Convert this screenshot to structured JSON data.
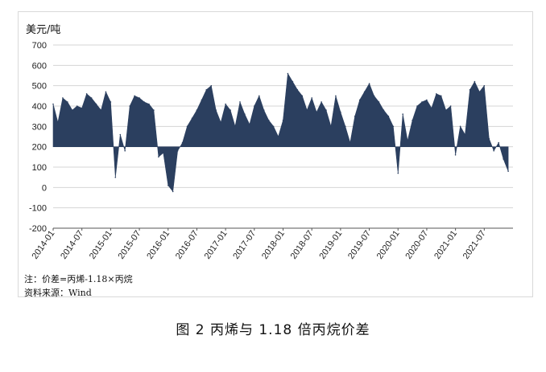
{
  "figure": {
    "unit_label": "美元/吨",
    "note": "注：价差=丙烯-1.18×丙烷",
    "source": "资料来源：Wind",
    "caption": "图 2  丙烯与 1.18 倍丙烷价差"
  },
  "colors": {
    "area": "#2b3f5f",
    "grid": "#d4d4d4",
    "axis": "#555555"
  },
  "chart_data": {
    "type": "area",
    "title": "",
    "xlabel": "",
    "ylabel": "美元/吨",
    "ylim": [
      -200,
      700
    ],
    "yticks": [
      -200,
      -100,
      0,
      100,
      200,
      300,
      400,
      500,
      600,
      700
    ],
    "baseline": 200,
    "grid": true,
    "legend": "none",
    "xticks": [
      "2014-01",
      "2014-07",
      "2015-01",
      "2015-07",
      "2016-01",
      "2016-07",
      "2017-01",
      "2017-07",
      "2018-01",
      "2018-07",
      "2019-01",
      "2019-07",
      "2020-01",
      "2020-07",
      "2021-01",
      "2021-07"
    ],
    "x": [
      "2014-01",
      "2014-02",
      "2014-03",
      "2014-04",
      "2014-05",
      "2014-06",
      "2014-07",
      "2014-08",
      "2014-09",
      "2014-10",
      "2014-11",
      "2014-12",
      "2015-01",
      "2015-02",
      "2015-03",
      "2015-04",
      "2015-05",
      "2015-06",
      "2015-07",
      "2015-08",
      "2015-09",
      "2015-10",
      "2015-11",
      "2015-12",
      "2016-01",
      "2016-02",
      "2016-03",
      "2016-04",
      "2016-05",
      "2016-06",
      "2016-07",
      "2016-08",
      "2016-09",
      "2016-10",
      "2016-11",
      "2016-12",
      "2017-01",
      "2017-02",
      "2017-03",
      "2017-04",
      "2017-05",
      "2017-06",
      "2017-07",
      "2017-08",
      "2017-09",
      "2017-10",
      "2017-11",
      "2017-12",
      "2018-01",
      "2018-02",
      "2018-03",
      "2018-04",
      "2018-05",
      "2018-06",
      "2018-07",
      "2018-08",
      "2018-09",
      "2018-10",
      "2018-11",
      "2018-12",
      "2019-01",
      "2019-02",
      "2019-03",
      "2019-04",
      "2019-05",
      "2019-06",
      "2019-07",
      "2019-08",
      "2019-09",
      "2019-10",
      "2019-11",
      "2019-12",
      "2020-01",
      "2020-02",
      "2020-03",
      "2020-04",
      "2020-05",
      "2020-06",
      "2020-07",
      "2020-08",
      "2020-09",
      "2020-10",
      "2020-11",
      "2020-12",
      "2021-01",
      "2021-02",
      "2021-03",
      "2021-04",
      "2021-05",
      "2021-06",
      "2021-07",
      "2021-08",
      "2021-09",
      "2021-10",
      "2021-11",
      "2021-12"
    ],
    "values": [
      410,
      320,
      440,
      420,
      380,
      400,
      390,
      460,
      440,
      410,
      380,
      470,
      420,
      50,
      260,
      180,
      400,
      450,
      440,
      420,
      410,
      380,
      150,
      170,
      10,
      -20,
      180,
      220,
      300,
      340,
      380,
      430,
      480,
      500,
      380,
      320,
      410,
      380,
      300,
      420,
      360,
      310,
      400,
      450,
      380,
      330,
      300,
      250,
      330,
      560,
      520,
      480,
      450,
      380,
      440,
      370,
      420,
      380,
      300,
      450,
      370,
      300,
      220,
      350,
      430,
      470,
      510,
      450,
      420,
      380,
      350,
      300,
      70,
      360,
      230,
      330,
      400,
      420,
      430,
      390,
      460,
      450,
      380,
      400,
      160,
      300,
      260,
      480,
      520,
      470,
      500,
      240,
      180,
      220,
      140,
      80
    ]
  }
}
